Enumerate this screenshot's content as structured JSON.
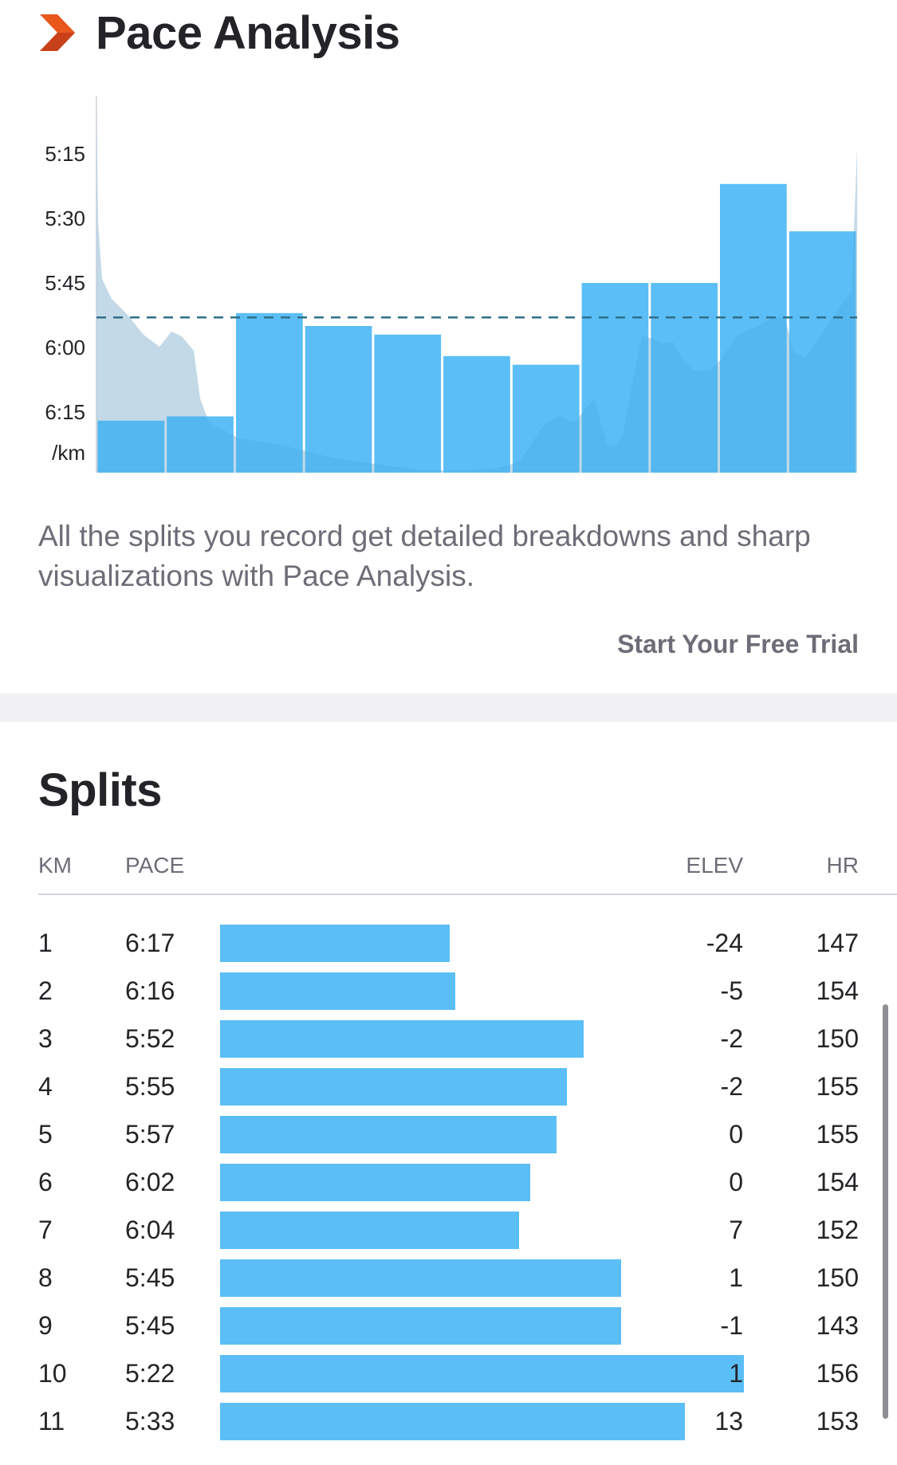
{
  "pace_analysis": {
    "title": "Pace Analysis",
    "brand_icon": "chevron-right-icon",
    "description": "All the splits you record get detailed breakdowns and sharp visualizations with Pace Analysis.",
    "cta_label": "Start Your Free Trial"
  },
  "chart_data": {
    "type": "bar",
    "title": "",
    "xlabel": "",
    "ylabel": "/km",
    "y_axis_inverted": true,
    "y_ticks": [
      "5:15",
      "5:30",
      "5:45",
      "6:00",
      "6:15"
    ],
    "y_unit_label": "/km",
    "ylim_seconds": [
      305,
      388
    ],
    "categories": [
      "1",
      "2",
      "3",
      "4",
      "5",
      "6",
      "7",
      "8",
      "9",
      "10",
      "11"
    ],
    "values": [
      "6:17",
      "6:16",
      "5:52",
      "5:55",
      "5:57",
      "6:02",
      "6:04",
      "5:45",
      "5:45",
      "5:22",
      "5:33"
    ],
    "values_seconds": [
      377,
      376,
      352,
      355,
      357,
      362,
      364,
      345,
      345,
      322,
      333
    ],
    "average_line_seconds": 353,
    "grid": false,
    "background_profile": "elevation",
    "colors": {
      "bar": "#5bbef6",
      "average_line": "#2f6f8a",
      "elevation_fill": "#d8d8dc"
    }
  },
  "splits": {
    "title": "Splits",
    "headers": {
      "km": "KM",
      "pace": "PACE",
      "elev": "ELEV",
      "hr": "HR"
    },
    "rows": [
      {
        "km": "1",
        "pace": "6:17",
        "elev": "-24",
        "hr": "147"
      },
      {
        "km": "2",
        "pace": "6:16",
        "elev": "-5",
        "hr": "154"
      },
      {
        "km": "3",
        "pace": "5:52",
        "elev": "-2",
        "hr": "150"
      },
      {
        "km": "4",
        "pace": "5:55",
        "elev": "-2",
        "hr": "155"
      },
      {
        "km": "5",
        "pace": "5:57",
        "elev": "0",
        "hr": "155"
      },
      {
        "km": "6",
        "pace": "6:02",
        "elev": "0",
        "hr": "154"
      },
      {
        "km": "7",
        "pace": "6:04",
        "elev": "7",
        "hr": "152"
      },
      {
        "km": "8",
        "pace": "5:45",
        "elev": "1",
        "hr": "150"
      },
      {
        "km": "9",
        "pace": "5:45",
        "elev": "-1",
        "hr": "143"
      },
      {
        "km": "10",
        "pace": "5:22",
        "elev": "1",
        "hr": "156"
      },
      {
        "km": "11",
        "pace": "5:33",
        "elev": "13",
        "hr": "153"
      }
    ],
    "bar_scale_seconds": {
      "slowest": 420,
      "fastest": 300
    },
    "colors": {
      "bar": "#5bbef6"
    }
  }
}
